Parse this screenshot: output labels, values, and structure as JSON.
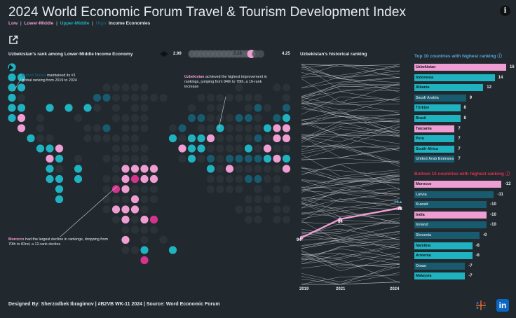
{
  "title": "2024 World Economic Forum Travel & Tourism Development Index",
  "subtitle": {
    "low": "Low",
    "sep1": "|",
    "lower_middle": "Lower-Middle",
    "sep2": "|",
    "upper_middle": "Upper-Middle",
    "sep3": "|",
    "high": "High",
    "suffix": "Income Economies"
  },
  "colors": {
    "background": "#21282e",
    "pink": "#ee9ed2",
    "magenta": "#d6338f",
    "teal": "#1fb3c2",
    "dark_teal": "#185a6e",
    "dark_dot": "#2b3339",
    "bottom_header": "#e0334d",
    "top_header": "#5aa7d8"
  },
  "map_section": {
    "title": "Uzbekistan's rank among Lower-Middle Income Economy",
    "slider_min": "2.99",
    "slider_selected": "3.18",
    "slider_max": "4.25",
    "annotation_us_country": "United States",
    "annotation_us_text": "maintained its #1 global ranking from 2019 to 2024",
    "annotation_uz_country": "Uzbekistan",
    "annotation_uz_text": "achieved the highest improvement in rankings, jumping from 94th to 78th, a 16-rank increase",
    "annotation_ma_country": "Morocco",
    "annotation_ma_text": "had the largest decline in rankings, dropping from 70th to 82nd, a 12-rank decline"
  },
  "history_section": {
    "title": "Uzbekistan's historical ranking",
    "years": [
      "2019",
      "2021",
      "2024"
    ],
    "ranks": [
      94,
      84,
      78
    ],
    "rank_labels": [
      "94",
      "84",
      "78"
    ],
    "change_label": "16▲"
  },
  "top10": {
    "title": "Top 10 countries with highest ranking ⓘ",
    "items": [
      {
        "country": "Uzbekistan",
        "value": 16,
        "label": "16",
        "color": "#ee9ed2"
      },
      {
        "country": "Indonesia",
        "value": 14,
        "label": "14",
        "color": "#1fb3c2"
      },
      {
        "country": "Albania",
        "value": 12,
        "label": "12",
        "color": "#1fb3c2"
      },
      {
        "country": "Saudi Arabia",
        "value": 9,
        "label": "9",
        "color": "#185a6e"
      },
      {
        "country": "Türkiye",
        "value": 8,
        "label": "8",
        "color": "#1fb3c2"
      },
      {
        "country": "Brazil",
        "value": 8,
        "label": "8",
        "color": "#1fb3c2"
      },
      {
        "country": "Tanzania",
        "value": 7,
        "label": "7",
        "color": "#ee9ed2"
      },
      {
        "country": "Peru",
        "value": 7,
        "label": "7",
        "color": "#1fb3c2"
      },
      {
        "country": "South Africa",
        "value": 7,
        "label": "7",
        "color": "#1fb3c2"
      },
      {
        "country": "United Arab Emirates",
        "value": 7,
        "label": "7",
        "color": "#185a6e"
      }
    ]
  },
  "bottom10": {
    "title": "Bottom 10 countries with highest ranking ⓘ",
    "items": [
      {
        "country": "Morocco",
        "value": 12,
        "label": "-12",
        "color": "#ee9ed2"
      },
      {
        "country": "Latvia",
        "value": 11,
        "label": "-11",
        "color": "#185a6e"
      },
      {
        "country": "Kuwait",
        "value": 10,
        "label": "-10",
        "color": "#185a6e"
      },
      {
        "country": "India",
        "value": 10,
        "label": "-10",
        "color": "#ee9ed2"
      },
      {
        "country": "Ireland",
        "value": 10,
        "label": "-10",
        "color": "#185a6e"
      },
      {
        "country": "Slovenia",
        "value": 9,
        "label": "-9",
        "color": "#185a6e"
      },
      {
        "country": "Namibia",
        "value": 8,
        "label": "-8",
        "color": "#1fb3c2"
      },
      {
        "country": "Armenia",
        "value": 8,
        "label": "-8",
        "color": "#1fb3c2"
      },
      {
        "country": "Oman",
        "value": 7,
        "label": "-7",
        "color": "#185a6e"
      },
      {
        "country": "Malaysia",
        "value": 7,
        "label": "-7",
        "color": "#1fb3c2"
      }
    ]
  },
  "footer": {
    "text": "Designed By:  Sherzodbek Ibragimov  | #B2VB WK-11 2024  |  Source:  Word Economic Forum"
  },
  "icons": {
    "info": "info-icon",
    "share": "share-icon",
    "tableau": "tableau-icon",
    "linkedin": "linkedin-icon"
  },
  "linkedin_text": "in"
}
